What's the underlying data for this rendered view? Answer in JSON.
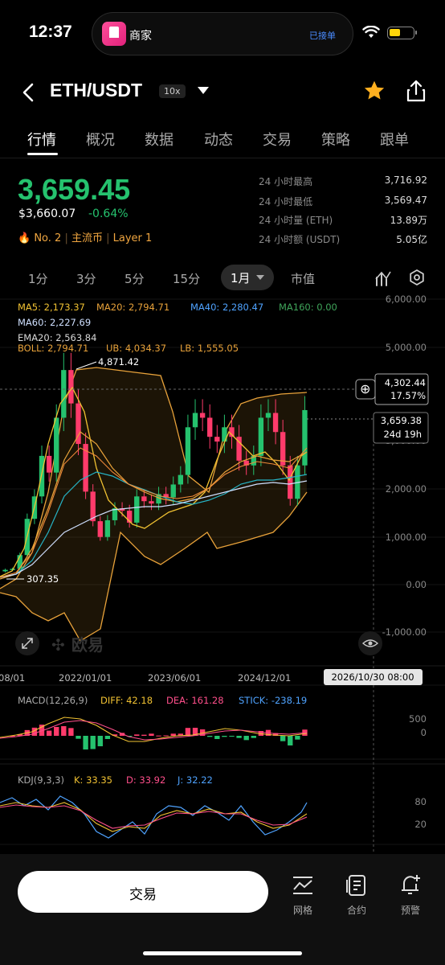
{
  "status_bar": {
    "time": "12:37",
    "app_name": "商家",
    "connection": "已接单"
  },
  "header": {
    "pair": "ETH/USDT",
    "leverage": "10x"
  },
  "tabs": [
    {
      "label": "行情",
      "active": true
    },
    {
      "label": "概况"
    },
    {
      "label": "数据"
    },
    {
      "label": "动态"
    },
    {
      "label": "交易"
    },
    {
      "label": "策略"
    },
    {
      "label": "跟单"
    }
  ],
  "price": {
    "last": "3,659.45",
    "usd": "$3,660.07",
    "change": "-0.64%",
    "rank": "No. 2",
    "tag1": "主流币",
    "tag2": "Layer 1",
    "accent_color": "#25c26e"
  },
  "stats": [
    {
      "label": "24 小时最高",
      "value": "3,716.92"
    },
    {
      "label": "24 小时最低",
      "value": "3,569.47"
    },
    {
      "label": "24 小时量 (ETH)",
      "value": "13.89万"
    },
    {
      "label": "24 小时额 (USDT)",
      "value": "5.05亿"
    }
  ],
  "intervals": [
    "1分",
    "3分",
    "5分",
    "15分",
    "1月",
    "市值"
  ],
  "indicators": {
    "ma5": "MA5: 2,173.37",
    "ma20": "MA20: 2,794.71",
    "ma40": "MA40: 2,280.47",
    "ma160": "MA160: 0.00",
    "ma60": "MA60: 2,227.69",
    "ema20": "EMA20: 2,563.84",
    "boll": "BOLL: 2,794.71",
    "ub": "UB: 4,034.37",
    "lb": "LB: 1,555.05"
  },
  "chart_data": {
    "type": "candlestick",
    "y_axis_ticks": [
      "6,000.00",
      "5,000.00",
      "3,000.00",
      "2,000.00",
      "1,000.00",
      "0.00",
      "-1,000.00"
    ],
    "x_axis_ticks": [
      "08/01",
      "2022/01/01",
      "2023/06/01",
      "2024/12/01"
    ],
    "max_label": "4,871.42",
    "min_label": "307.35",
    "crosshair_price": "4,302.44",
    "crosshair_pct": "17.57%",
    "current_price": "3,659.38",
    "countdown": "24d 19h",
    "crosshair_date": "2026/10/30 08:00",
    "watermark": "欧易",
    "closes": [
      310,
      330,
      620,
      1380,
      1850,
      2700,
      2350,
      3500,
      4500,
      3800,
      2950,
      1950,
      1330,
      1000,
      1350,
      1600,
      1550,
      1300,
      1850,
      1750,
      1700,
      1900,
      1830,
      2100,
      2300,
      3300,
      3600,
      3500,
      3100,
      3000,
      3300,
      3100,
      2600,
      2500,
      2700,
      3500,
      3600,
      3200,
      2500,
      1800,
      2500,
      3660
    ]
  },
  "macd": {
    "title": "MACD(12,26,9)",
    "diff": "DIFF: 42.18",
    "dea": "DEA: 161.28",
    "stick": "STICK: -238.19",
    "ticks": [
      "500",
      "0"
    ]
  },
  "kdj": {
    "title": "KDJ(9,3,3)",
    "k": "K: 33.35",
    "d": "D: 33.92",
    "j": "J: 32.22",
    "ticks": [
      "80",
      "20"
    ]
  },
  "bottom_bar": {
    "trade_label": "交易",
    "grid_label": "网格",
    "contract_label": "合约",
    "alert_label": "预警"
  }
}
